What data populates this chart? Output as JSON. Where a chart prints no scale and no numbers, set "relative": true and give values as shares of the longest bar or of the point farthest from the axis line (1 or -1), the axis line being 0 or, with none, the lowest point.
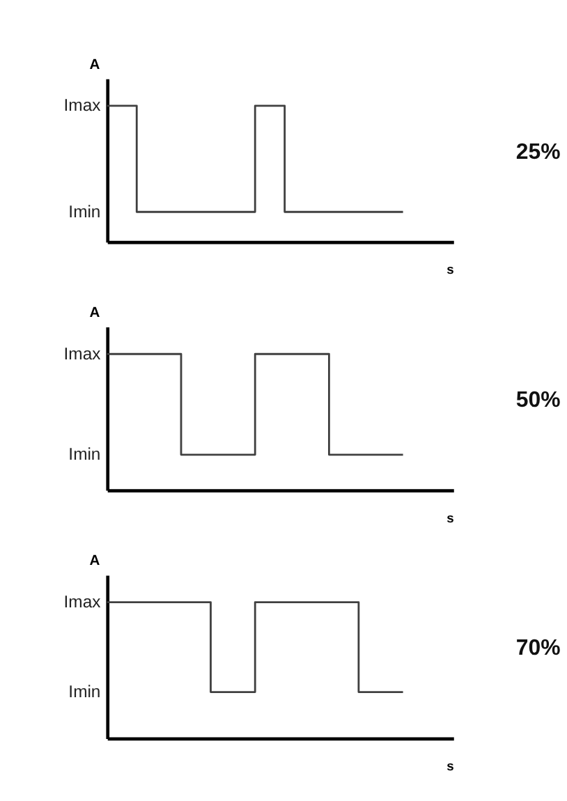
{
  "chart_data": [
    {
      "type": "step",
      "relative": true,
      "xlabel": "s",
      "ylabel": "A",
      "grid": false,
      "tick_labels": false,
      "annotations": [
        "25%",
        "Imax",
        "Imin"
      ],
      "categories": [
        null,
        null,
        null,
        null,
        null,
        null,
        null,
        null,
        null,
        null,
        null
      ],
      "series": [
        {
          "color": "#404040",
          "values": [
            1,
            0.22,
            0.22,
            0.22,
            0.22,
            1,
            0.22,
            0.22,
            0.22,
            0.22,
            0.22
          ]
        }
      ]
    },
    {
      "type": "step",
      "relative": true,
      "xlabel": "s",
      "ylabel": "A",
      "grid": false,
      "tick_labels": false,
      "annotations": [
        "50%",
        "Imax",
        "Imin"
      ],
      "categories": [
        null,
        null,
        null,
        null,
        null
      ],
      "series": [
        {
          "color": "#404040",
          "values": [
            1,
            0.26,
            1,
            0.26,
            0.26
          ]
        }
      ]
    },
    {
      "type": "step",
      "relative": true,
      "xlabel": "s",
      "ylabel": "A",
      "grid": false,
      "tick_labels": false,
      "annotations": [
        "70%",
        "Imax",
        "Imin"
      ],
      "categories": [
        null,
        null,
        null,
        null,
        null,
        null,
        null,
        null,
        null,
        null,
        null,
        null,
        null,
        null,
        null,
        null,
        null,
        null,
        null,
        null,
        null
      ],
      "series": [
        {
          "color": "#404040",
          "values": [
            1,
            1,
            1,
            1,
            1,
            1,
            1,
            0.34,
            0.34,
            0.34,
            1,
            1,
            1,
            1,
            1,
            1,
            1,
            0.34,
            0.34,
            0.34,
            0.34
          ]
        }
      ]
    }
  ]
}
